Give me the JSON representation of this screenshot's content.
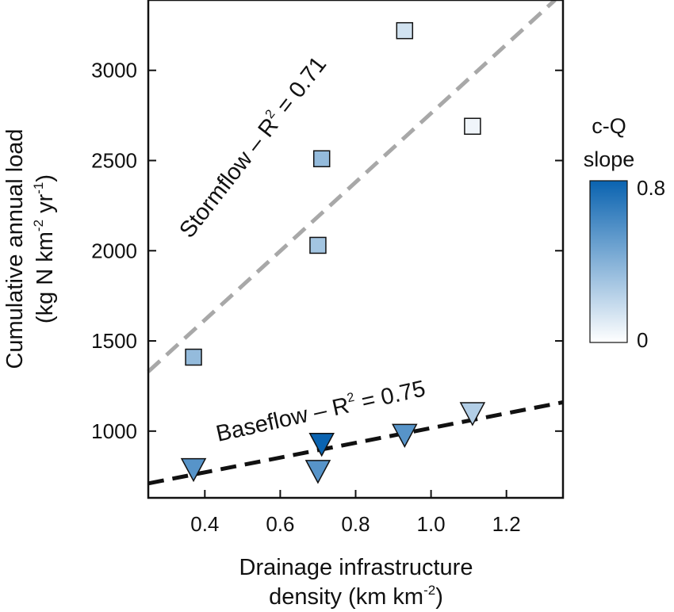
{
  "chart_data": {
    "type": "scatter",
    "xlabel_line1": "Drainage infrastructure",
    "xlabel_line2": "density (km km",
    "xlabel_line2_sup": "-2",
    "xlabel_line2_end": ")",
    "ylabel_line1": "Cumulative annual load",
    "ylabel_line2_a": "(kg N km",
    "ylabel_line2_sup1": "-2",
    "ylabel_line2_b": " yr",
    "ylabel_line2_sup2": "-1",
    "ylabel_line2_end": ")",
    "xlim": [
      0.25,
      1.35
    ],
    "ylim": [
      630,
      3390
    ],
    "xticks": [
      0.4,
      0.6,
      0.8,
      1.0,
      1.2
    ],
    "xtick_labels": [
      "0.4",
      "0.6",
      "0.8",
      "1.0",
      "1.2"
    ],
    "yticks": [
      1000,
      1500,
      2000,
      2500,
      3000
    ],
    "ytick_labels": [
      "1000",
      "1500",
      "2000",
      "2500",
      "3000"
    ],
    "series": [
      {
        "marker": "square",
        "points": [
          {
            "x": 0.37,
            "y": 1410,
            "c": 0.35
          },
          {
            "x": 0.7,
            "y": 2030,
            "c": 0.3
          },
          {
            "x": 0.71,
            "y": 2510,
            "c": 0.35
          },
          {
            "x": 0.93,
            "y": 3220,
            "c": 0.15
          },
          {
            "x": 1.11,
            "y": 2690,
            "c": 0.05
          }
        ]
      },
      {
        "marker": "triangle-down",
        "points": [
          {
            "x": 0.37,
            "y": 790,
            "c": 0.55
          },
          {
            "x": 0.7,
            "y": 780,
            "c": 0.55
          },
          {
            "x": 0.71,
            "y": 930,
            "c": 0.8
          },
          {
            "x": 0.93,
            "y": 980,
            "c": 0.55
          },
          {
            "x": 1.11,
            "y": 1100,
            "c": 0.25
          }
        ]
      }
    ],
    "fit_lines": [
      {
        "x": [
          0.25,
          1.35
        ],
        "y": [
          1330,
          3430
        ],
        "color": "#a8a8a8"
      },
      {
        "x": [
          0.25,
          1.35
        ],
        "y": [
          710,
          1160
        ],
        "color": "#111111"
      }
    ],
    "annotations": {
      "stormflow_a": "Stormflow – R",
      "stormflow_sup": "2",
      "stormflow_b": " = 0.71",
      "baseflow_a": "Baseflow – R",
      "baseflow_sup": "2",
      "baseflow_b": " = 0.75"
    },
    "colorbar": {
      "title_line1": "c-Q",
      "title_line2": "slope",
      "min_label": "0",
      "max_label": "0.8",
      "min": 0,
      "max": 0.8,
      "color_low": "#ffffff",
      "color_high": "#0a63b0"
    },
    "grid": false,
    "legend": "none"
  }
}
